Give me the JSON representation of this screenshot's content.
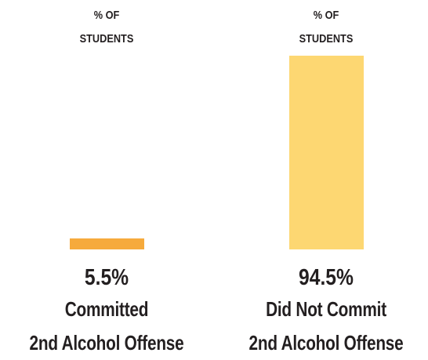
{
  "chart_data": {
    "type": "bar",
    "bar_headers": [
      "% OF\nSTUDENTS",
      "% OF\nSTUDENTS"
    ],
    "categories": [
      "Committed\n2nd Alcohol Offense",
      "Did Not Commit\n2nd Alcohol Offense"
    ],
    "values": [
      5.5,
      94.5
    ],
    "value_labels": [
      "5.5%",
      "94.5%"
    ],
    "colors": [
      "#f6aa3c",
      "#fdd772"
    ],
    "ylim": [
      0,
      100
    ]
  }
}
